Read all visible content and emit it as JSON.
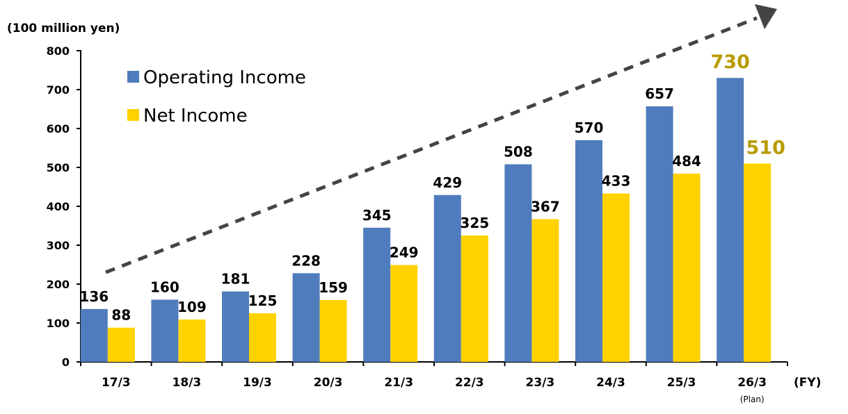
{
  "chart_data": {
    "type": "bar",
    "unit_label": "(100 million yen)",
    "xlabel": "(FY)",
    "categories": [
      "17/3",
      "18/3",
      "19/3",
      "20/3",
      "21/3",
      "22/3",
      "23/3",
      "24/3",
      "25/3",
      "26/3"
    ],
    "category_notes": {
      "26/3": "(Plan)"
    },
    "series": [
      {
        "name": "Operating Income",
        "color": "#4F7CBC",
        "values": [
          136,
          160,
          181,
          228,
          345,
          429,
          508,
          570,
          657,
          730
        ]
      },
      {
        "name": "Net Income",
        "color": "#FFD200",
        "values": [
          88,
          109,
          125,
          159,
          249,
          325,
          367,
          433,
          484,
          510
        ]
      }
    ],
    "highlight_label_color": "#B89B00",
    "ylim": [
      0,
      800
    ],
    "yticks": [
      0,
      100,
      200,
      300,
      400,
      500,
      600,
      700,
      800
    ],
    "legend_position": "top-left",
    "grid": false,
    "trend_arrow": "dashed, rising left to right"
  }
}
